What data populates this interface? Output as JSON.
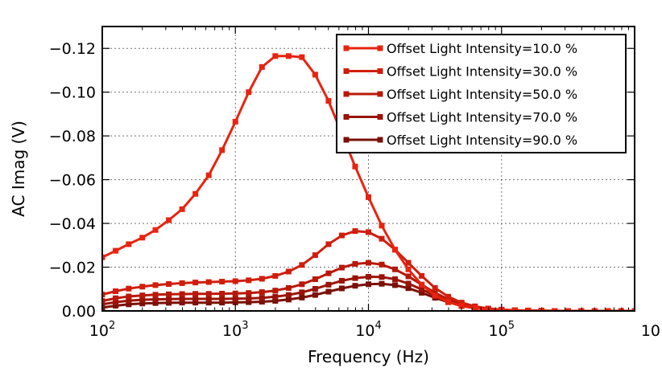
{
  "chart_data": {
    "type": "line",
    "title": "",
    "xlabel": "Frequency (Hz)",
    "ylabel": "AC Imag (V)",
    "xscale": "log",
    "xlim": [
      100,
      1000000
    ],
    "ylim": [
      0.0,
      -0.13
    ],
    "y_inverted": true,
    "grid": true,
    "legend_position": "top-right",
    "x_tick_labels": [
      {
        "base": "10",
        "exp": "2"
      },
      {
        "base": "10",
        "exp": "3"
      },
      {
        "base": "10",
        "exp": "4"
      },
      {
        "base": "10",
        "exp": "5"
      },
      {
        "base": "10",
        "exp": ""
      }
    ],
    "y_ticks": [
      0.0,
      -0.02,
      -0.04,
      -0.06,
      -0.08,
      -0.1,
      -0.12
    ],
    "y_tick_labels": [
      "0.00",
      "−0.02",
      "−0.04",
      "−0.06",
      "−0.08",
      "−0.10",
      "−0.12"
    ],
    "x": [
      100,
      126,
      158,
      200,
      251,
      316,
      398,
      501,
      631,
      794,
      1000,
      1259,
      1585,
      1995,
      2512,
      3162,
      3981,
      5012,
      6310,
      7943,
      10000,
      12589,
      15849,
      19953,
      25119,
      31623,
      39811,
      50119,
      63096,
      79433,
      100000,
      125893,
      158489,
      199526,
      251189,
      316228,
      398107,
      501187,
      630957,
      794328,
      1000000
    ],
    "series": [
      {
        "name": "Offset Light Intensity=10.0 %",
        "color": "#e8230f",
        "values": [
          -0.0245,
          -0.0275,
          -0.0305,
          -0.0335,
          -0.037,
          -0.0415,
          -0.0465,
          -0.0535,
          -0.062,
          -0.0735,
          -0.0865,
          -0.1,
          -0.1115,
          -0.1165,
          -0.1165,
          -0.116,
          -0.108,
          -0.096,
          -0.081,
          -0.066,
          -0.052,
          -0.039,
          -0.028,
          -0.019,
          -0.012,
          -0.007,
          -0.004,
          -0.0022,
          -0.0012,
          -0.0007,
          -0.0004,
          -0.0002,
          -0.0001,
          -0.0001,
          0.0,
          0.0,
          0.0,
          0.0,
          0.0,
          0.0,
          0.0
        ]
      },
      {
        "name": "Offset Light Intensity=30.0 %",
        "color": "#d11d0c",
        "values": [
          -0.0075,
          -0.009,
          -0.0102,
          -0.0111,
          -0.0118,
          -0.0123,
          -0.0127,
          -0.013,
          -0.0132,
          -0.0134,
          -0.0136,
          -0.014,
          -0.0147,
          -0.016,
          -0.018,
          -0.021,
          -0.0255,
          -0.0305,
          -0.0345,
          -0.0365,
          -0.036,
          -0.033,
          -0.028,
          -0.022,
          -0.016,
          -0.0105,
          -0.0065,
          -0.0038,
          -0.0021,
          -0.0011,
          -0.0006,
          -0.0003,
          -0.0002,
          -0.0001,
          0.0,
          0.0,
          0.0,
          0.0,
          0.0,
          0.0,
          0.0
        ]
      },
      {
        "name": "Offset Light Intensity=50.0 %",
        "color": "#b8180a",
        "values": [
          -0.0045,
          -0.0058,
          -0.0066,
          -0.0071,
          -0.0074,
          -0.0076,
          -0.0077,
          -0.0078,
          -0.0078,
          -0.0079,
          -0.008,
          -0.0082,
          -0.0086,
          -0.0093,
          -0.0105,
          -0.0122,
          -0.0145,
          -0.0172,
          -0.0198,
          -0.0215,
          -0.022,
          -0.0212,
          -0.019,
          -0.0158,
          -0.012,
          -0.0083,
          -0.0053,
          -0.0032,
          -0.0018,
          -0.001,
          -0.0005,
          -0.0003,
          -0.0001,
          -0.0001,
          0.0,
          0.0,
          0.0,
          0.0,
          0.0,
          0.0,
          0.0
        ]
      },
      {
        "name": "Offset Light Intensity=70.0 %",
        "color": "#9a1408",
        "values": [
          -0.003,
          -0.004,
          -0.0047,
          -0.0051,
          -0.0053,
          -0.0054,
          -0.0055,
          -0.0055,
          -0.0055,
          -0.0055,
          -0.0056,
          -0.0057,
          -0.006,
          -0.0065,
          -0.0073,
          -0.0085,
          -0.0101,
          -0.012,
          -0.0138,
          -0.015,
          -0.0156,
          -0.0155,
          -0.0145,
          -0.0125,
          -0.0098,
          -0.007,
          -0.0046,
          -0.0028,
          -0.0016,
          -0.0009,
          -0.0005,
          -0.0002,
          -0.0001,
          -0.0001,
          0.0,
          0.0,
          0.0,
          0.0,
          0.0,
          0.0,
          0.0
        ]
      },
      {
        "name": "Offset Light Intensity=90.0 %",
        "color": "#7a1006",
        "values": [
          -0.0015,
          -0.0024,
          -0.003,
          -0.0034,
          -0.0036,
          -0.0037,
          -0.0038,
          -0.0038,
          -0.0038,
          -0.0038,
          -0.0039,
          -0.004,
          -0.0042,
          -0.0046,
          -0.0052,
          -0.0061,
          -0.0073,
          -0.0088,
          -0.0103,
          -0.0115,
          -0.0122,
          -0.0124,
          -0.0118,
          -0.0104,
          -0.0083,
          -0.006,
          -0.004,
          -0.0025,
          -0.0014,
          -0.0008,
          -0.0004,
          -0.0002,
          -0.0001,
          0.0,
          0.0,
          0.0,
          0.0,
          0.0,
          0.0,
          0.0,
          0.0
        ]
      }
    ]
  }
}
